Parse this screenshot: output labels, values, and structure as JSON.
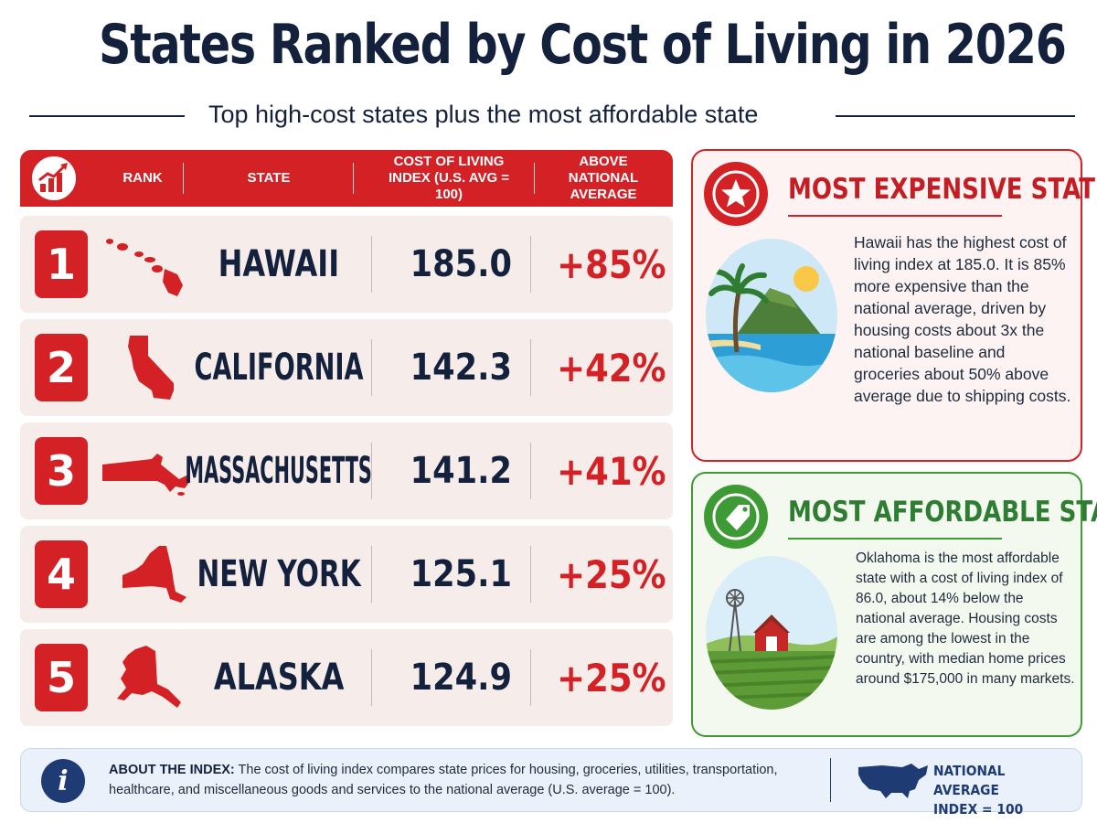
{
  "title": "States Ranked by Cost of Living in 2026",
  "subtitle": "Top high-cost states plus the most affordable state",
  "table": {
    "headers": {
      "rank": "RANK",
      "state": "STATE",
      "index": "COST OF LIVING INDEX (U.S. AVG = 100)",
      "above": "ABOVE NATIONAL AVERAGE"
    },
    "rows": [
      {
        "rank": "1",
        "state": "HAWAII",
        "index": "185.0",
        "above": "+85%",
        "shape_icon": "hawaii-shape-icon"
      },
      {
        "rank": "2",
        "state": "CALIFORNIA",
        "index": "142.3",
        "above": "+42%",
        "shape_icon": "california-shape-icon"
      },
      {
        "rank": "3",
        "state": "MASSACHUSETTS",
        "index": "141.2",
        "above": "+41%",
        "shape_icon": "massachusetts-shape-icon"
      },
      {
        "rank": "4",
        "state": "NEW YORK",
        "index": "125.1",
        "above": "+25%",
        "shape_icon": "new-york-shape-icon"
      },
      {
        "rank": "5",
        "state": "ALASKA",
        "index": "124.9",
        "above": "+25%",
        "shape_icon": "alaska-shape-icon"
      }
    ]
  },
  "expensive": {
    "title": "MOST EXPENSIVE STATE",
    "text": "Hawaii has the highest cost of living index at 185.0. It is 85% more expensive than the national average, driven by housing costs about 3x the national baseline and groceries about 50% above average due to shipping costs.",
    "icon": "star-icon"
  },
  "affordable": {
    "title": "MOST AFFORDABLE STATE",
    "text": "Oklahoma is the most affordable state with a cost of living index of 86.0, about 14% below the national average. Housing costs are among the lowest in the country, with median home prices around $175,000 in many markets.",
    "icon": "price-tag-icon"
  },
  "footer": {
    "label": "ABOUT THE INDEX:",
    "text": "The cost of living index compares state prices for housing, groceries, utilities, transportation, healthcare, and miscellaneous goods and services to the national average (U.S. average = 100).",
    "national_line1": "NATIONAL AVERAGE",
    "national_line2": "INDEX = 100"
  },
  "colors": {
    "red": "#d32126",
    "green": "#3e9a35",
    "navy": "#14213d"
  }
}
